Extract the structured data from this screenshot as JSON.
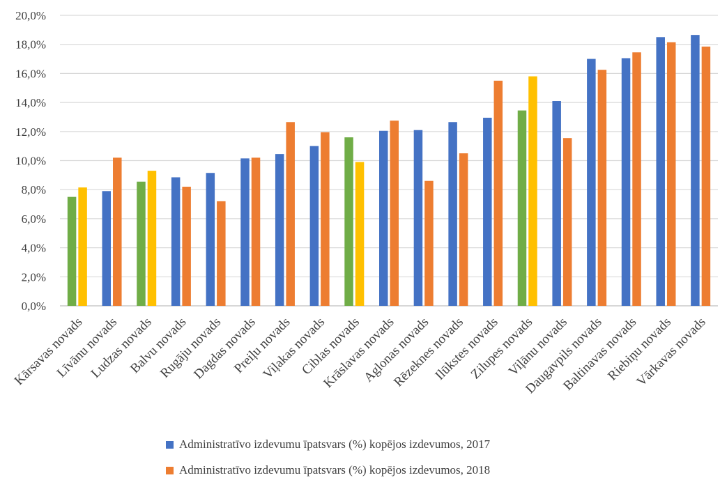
{
  "chart_data": {
    "type": "bar",
    "title": "",
    "xlabel": "",
    "ylabel": "",
    "ylim": [
      0,
      20
    ],
    "ytick_step": 2,
    "ytick_labels": [
      "0,0%",
      "2,0%",
      "4,0%",
      "6,0%",
      "8,0%",
      "10,0%",
      "12,0%",
      "14,0%",
      "16,0%",
      "18,0%",
      "20,0%"
    ],
    "grid": true,
    "legend_position": "bottom",
    "categories": [
      "Kārsavas novads",
      "Līvānu novads",
      "Ludzas novads",
      "Balvu novads",
      "Rugāju novads",
      "Dagdas novads",
      "Preiļu novads",
      "Viļakas novads",
      "Ciblas novads",
      "Krāslavas novads",
      "Aglonas novads",
      "Rēzeknes novads",
      "Ilūkstes novads",
      "Zilupes novads",
      "Viļānu novads",
      "Daugavpils novads",
      "Baltinavas novads",
      "Riebiņu novads",
      "Vārkavas novads"
    ],
    "series": [
      {
        "name": "Administratīvo izdevumu īpatsvars (%) kopējos izdevumos, 2017",
        "color": "#4472C4",
        "values": [
          7.5,
          7.9,
          8.55,
          8.85,
          9.15,
          10.15,
          10.45,
          11.0,
          11.6,
          12.05,
          12.1,
          12.65,
          12.95,
          13.45,
          14.1,
          17.0,
          17.05,
          18.5,
          18.65
        ]
      },
      {
        "name": "Administratīvo izdevumu īpatsvars (%) kopējos izdevumos, 2018",
        "color": "#ED7D31",
        "values": [
          8.15,
          10.2,
          9.3,
          8.2,
          7.2,
          10.2,
          12.65,
          11.95,
          9.9,
          12.75,
          8.6,
          10.5,
          15.5,
          15.8,
          11.55,
          16.25,
          17.45,
          18.15,
          17.85
        ]
      }
    ],
    "highlight": {
      "categories": [
        "Kārsavas novads",
        "Ludzas novads",
        "Ciblas novads",
        "Zilupes novads"
      ],
      "colors_2017": "#70AD47",
      "colors_2018": "#FFC000"
    },
    "colors": {
      "grid": "#D9D9D9",
      "axis": "#BFBFBF",
      "text": "#404040"
    }
  }
}
